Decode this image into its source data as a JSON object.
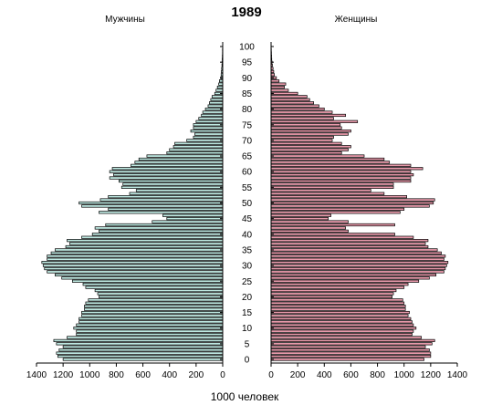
{
  "chart_data": {
    "type": "bar",
    "title": "1989",
    "left_label": "Мужчины",
    "right_label": "Женщины",
    "xlabel": "1000 человек",
    "xlim": [
      0,
      1400
    ],
    "x_ticks": [
      "1400",
      "1200",
      "1000",
      "800",
      "600",
      "400",
      "200",
      "0"
    ],
    "x_ticks_right": [
      "0",
      "200",
      "400",
      "600",
      "800",
      "1000",
      "1200",
      "1400"
    ],
    "age_ticks": [
      "0",
      "5",
      "10",
      "15",
      "20",
      "25",
      "30",
      "35",
      "40",
      "45",
      "50",
      "55",
      "60",
      "65",
      "70",
      "75",
      "80",
      "85",
      "90",
      "95",
      "100"
    ],
    "colors": {
      "male": "#bfe9e2",
      "female": "#e89aab",
      "outline": "#000000"
    },
    "ages": [
      0,
      1,
      2,
      3,
      4,
      5,
      6,
      7,
      8,
      9,
      10,
      11,
      12,
      13,
      14,
      15,
      16,
      17,
      18,
      19,
      20,
      21,
      22,
      23,
      24,
      25,
      26,
      27,
      28,
      29,
      30,
      31,
      32,
      33,
      34,
      35,
      36,
      37,
      38,
      39,
      40,
      41,
      42,
      43,
      44,
      45,
      46,
      47,
      48,
      49,
      50,
      51,
      52,
      53,
      54,
      55,
      56,
      57,
      58,
      59,
      60,
      61,
      62,
      63,
      64,
      65,
      66,
      67,
      68,
      69,
      70,
      71,
      72,
      73,
      74,
      75,
      76,
      77,
      78,
      79,
      80,
      81,
      82,
      83,
      84,
      85,
      86,
      87,
      88,
      89,
      90,
      91,
      92,
      93,
      94,
      95,
      96,
      97,
      98,
      99,
      100
    ],
    "series": [
      {
        "name": "Мужчины",
        "values": [
          1200,
          1240,
          1250,
          1230,
          1200,
          1250,
          1270,
          1170,
          1100,
          1100,
          1120,
          1100,
          1080,
          1080,
          1060,
          1060,
          1040,
          1040,
          1030,
          1010,
          930,
          940,
          960,
          1030,
          1050,
          1130,
          1210,
          1260,
          1320,
          1340,
          1350,
          1360,
          1320,
          1320,
          1290,
          1260,
          1180,
          1150,
          1170,
          1060,
          980,
          930,
          960,
          880,
          530,
          420,
          450,
          930,
          860,
          1060,
          1080,
          920,
          860,
          700,
          650,
          760,
          750,
          780,
          850,
          820,
          850,
          830,
          690,
          660,
          630,
          570,
          420,
          400,
          370,
          360,
          270,
          220,
          210,
          240,
          220,
          220,
          200,
          180,
          160,
          150,
          130,
          110,
          100,
          90,
          80,
          60,
          50,
          40,
          30,
          25,
          15,
          12,
          10,
          8,
          6,
          5,
          4,
          3,
          2,
          2,
          1
        ]
      },
      {
        "name": "Женщины",
        "values": [
          1150,
          1200,
          1200,
          1190,
          1160,
          1210,
          1230,
          1130,
          1060,
          1070,
          1090,
          1070,
          1060,
          1050,
          1030,
          1040,
          1010,
          1010,
          1000,
          990,
          910,
          920,
          940,
          1000,
          1030,
          1110,
          1190,
          1240,
          1300,
          1310,
          1320,
          1330,
          1300,
          1310,
          1280,
          1250,
          1180,
          1160,
          1180,
          1070,
          930,
          580,
          560,
          930,
          580,
          430,
          450,
          970,
          1000,
          1190,
          1220,
          1230,
          1020,
          850,
          750,
          920,
          920,
          1050,
          1050,
          1070,
          1050,
          1140,
          1050,
          890,
          850,
          700,
          530,
          580,
          600,
          530,
          460,
          470,
          580,
          600,
          530,
          520,
          650,
          470,
          560,
          460,
          400,
          360,
          320,
          290,
          270,
          200,
          130,
          100,
          110,
          60,
          40,
          25,
          20,
          15,
          10,
          8,
          5,
          4,
          3,
          2,
          1
        ]
      }
    ]
  }
}
